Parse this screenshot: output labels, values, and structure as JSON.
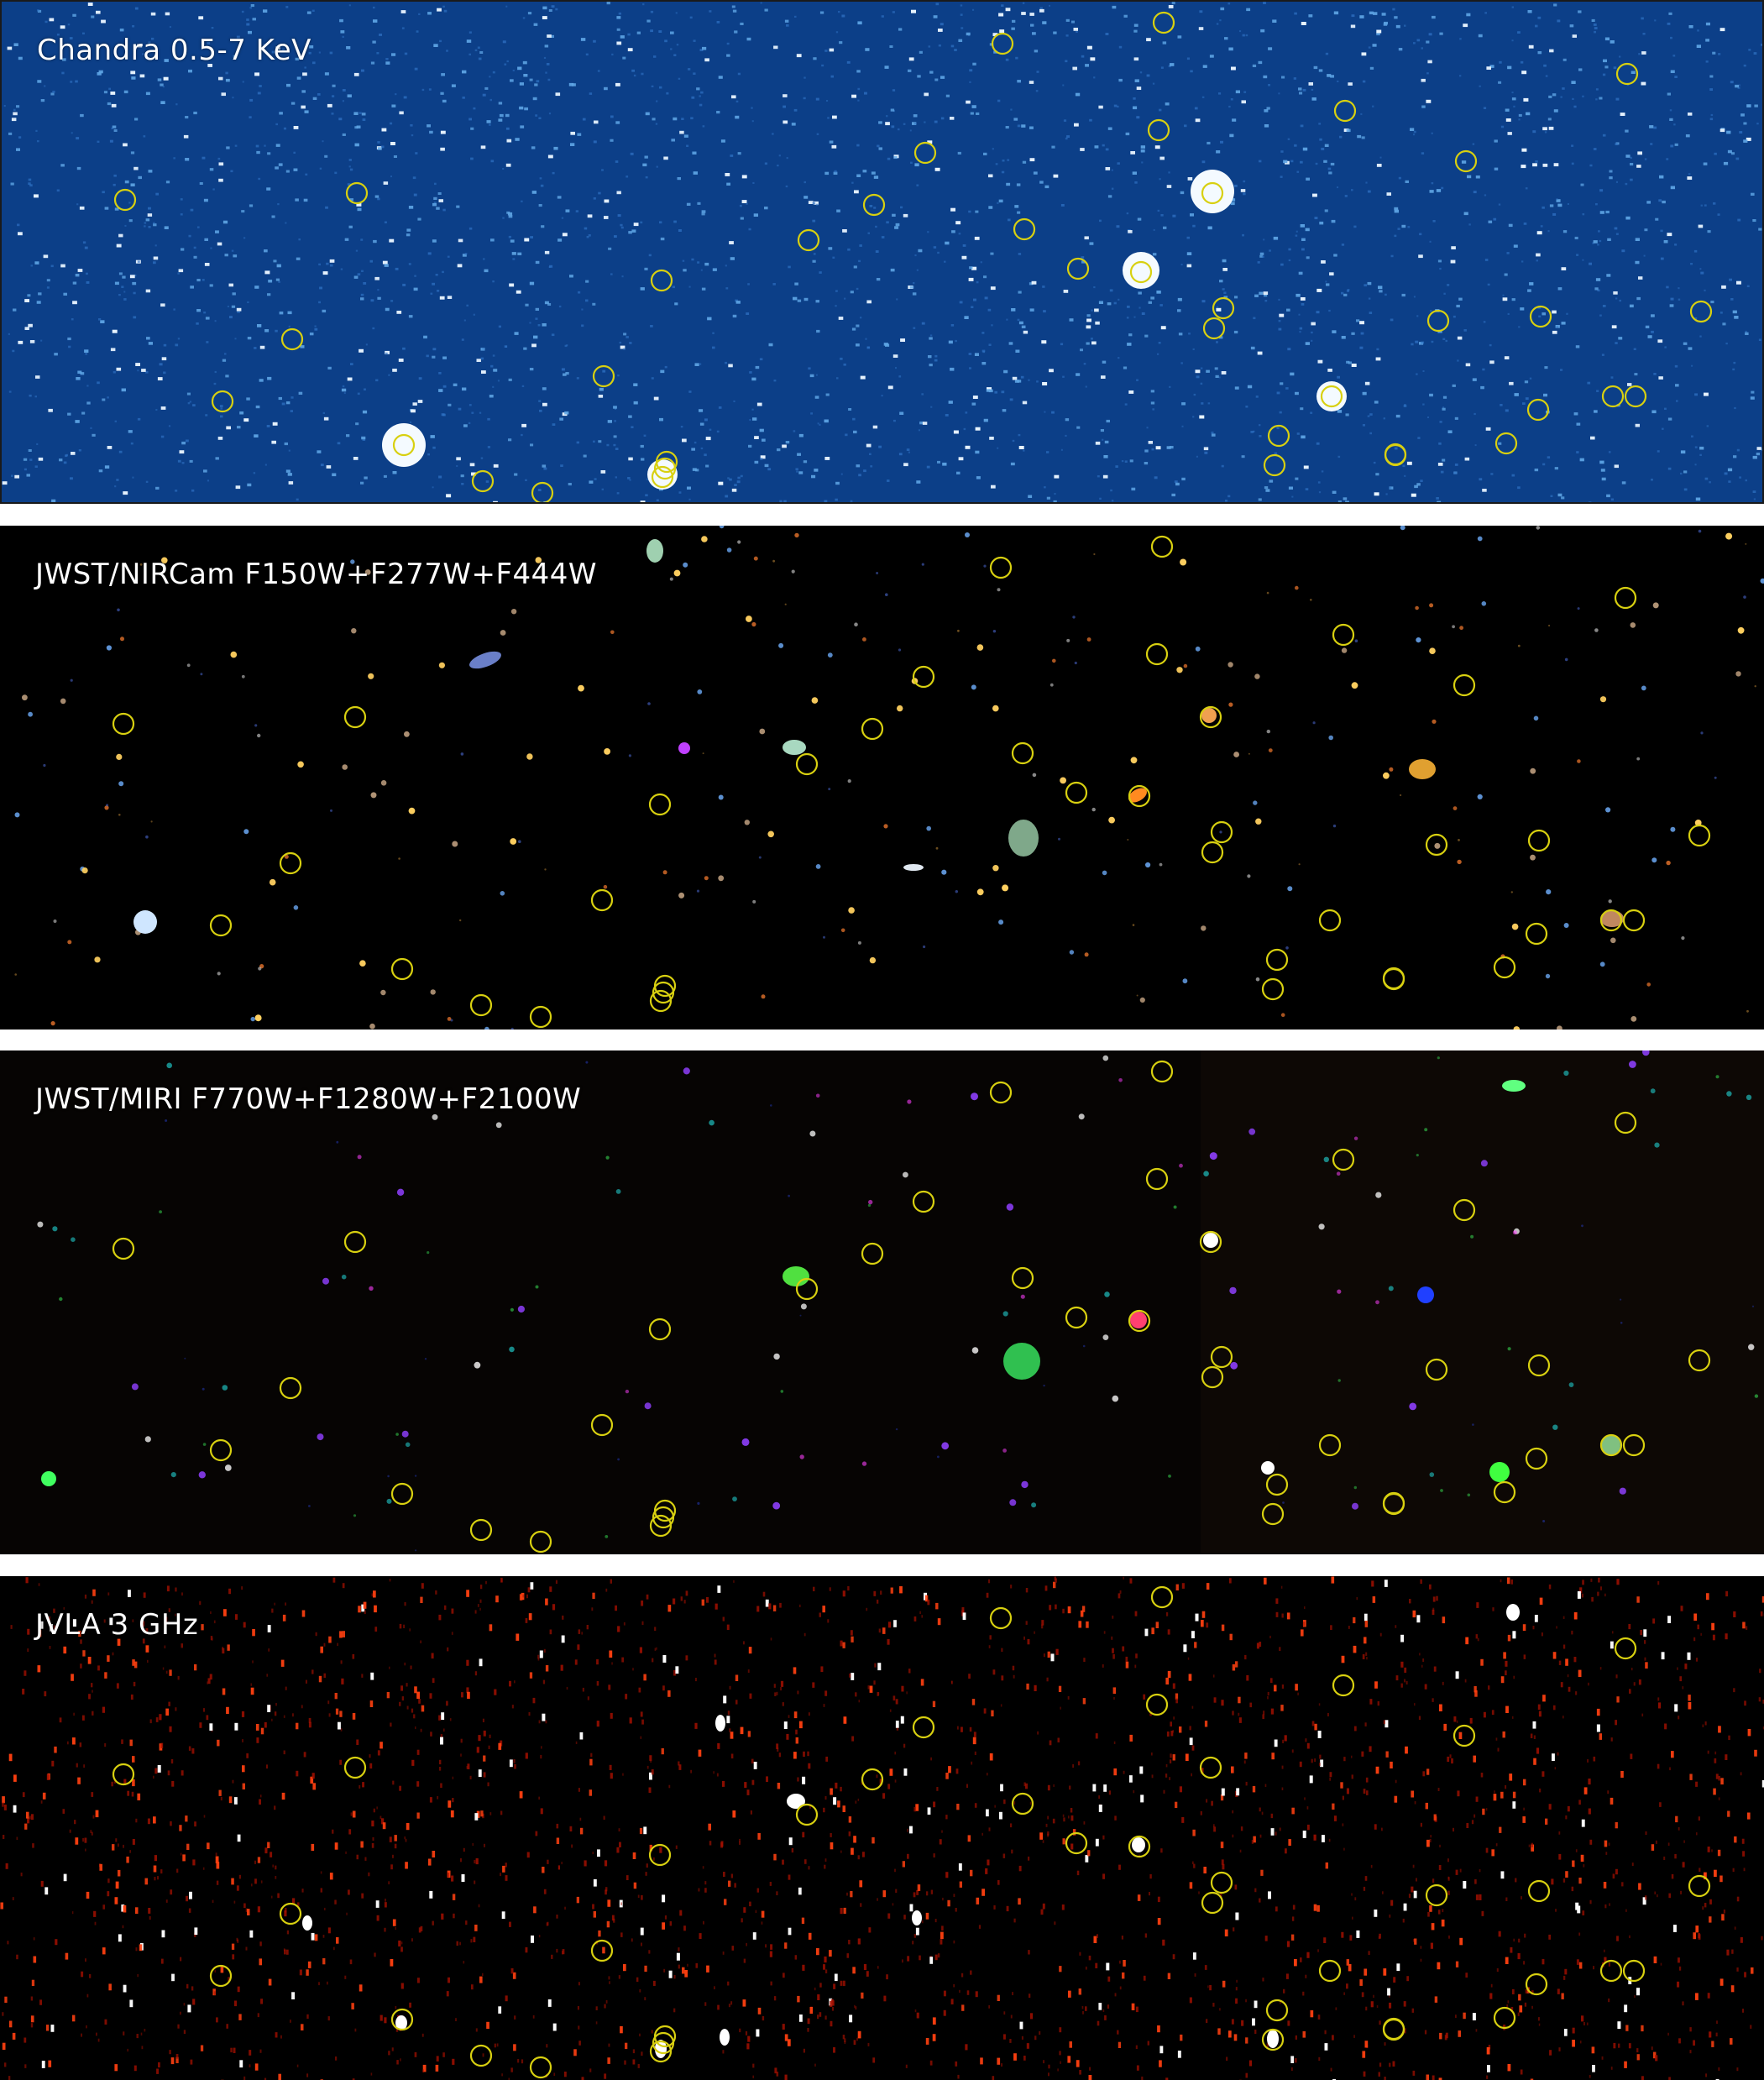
{
  "panels": [
    {
      "id": "chandra",
      "label": "Chandra 0.5-7 KeV",
      "colormap": "blue",
      "bg": "#0b3f86"
    },
    {
      "id": "nircam",
      "label": "JWST/NIRCam F150W+F277W+F444W",
      "colormap": "rgb-composite",
      "bg": "#000000"
    },
    {
      "id": "miri",
      "label": "JWST/MIRI F770W+F1280W+F2100W",
      "colormap": "rgb-composite",
      "bg": "#050302"
    },
    {
      "id": "jvla",
      "label": "JVLA 3 GHz",
      "colormap": "heat",
      "bg": "#000000"
    }
  ],
  "marker_color": "#d8d010",
  "marker_count_per_panel": 39
}
